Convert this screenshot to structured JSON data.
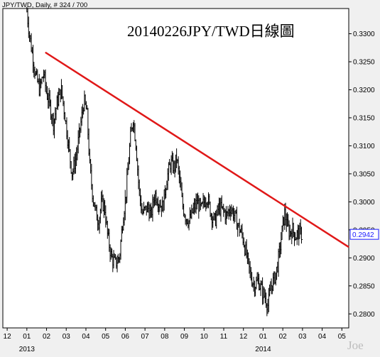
{
  "header": {
    "symbol": "JPY/TWD",
    "info": ", Daily, # 324 / 700"
  },
  "watermark": "Joe",
  "chart_data": {
    "type": "ohlc",
    "title": "20140226JPY/TWD日線圖",
    "y_ticks": [
      "0.3300",
      "0.3250",
      "0.3200",
      "0.3150",
      "0.3100",
      "0.3050",
      "0.3000",
      "0.2950",
      "0.2900",
      "0.2850",
      "0.2800"
    ],
    "ylim": [
      0.2775,
      0.3345
    ],
    "x_ticks": [
      {
        "label": "12",
        "x": 0.0
      },
      {
        "label": "01",
        "x": 1.0
      },
      {
        "label": "02",
        "x": 2.0
      },
      {
        "label": "03",
        "x": 3.0
      },
      {
        "label": "04",
        "x": 4.0
      },
      {
        "label": "05",
        "x": 5.0
      },
      {
        "label": "06",
        "x": 6.0
      },
      {
        "label": "07",
        "x": 7.0
      },
      {
        "label": "08",
        "x": 8.0
      },
      {
        "label": "09",
        "x": 9.0
      },
      {
        "label": "10",
        "x": 10.0
      },
      {
        "label": "11",
        "x": 11.0
      },
      {
        "label": "12",
        "x": 12.0
      },
      {
        "label": "01",
        "x": 13.0
      },
      {
        "label": "02",
        "x": 14.0
      },
      {
        "label": "03",
        "x": 15.0
      },
      {
        "label": "04",
        "x": 16.0
      },
      {
        "label": "05",
        "x": 17.0
      }
    ],
    "year_labels": [
      {
        "label": "2013",
        "x": 1.0
      },
      {
        "label": "2014",
        "x": 13.0
      }
    ],
    "xlim": [
      -0.22,
      17.35
    ],
    "last_value": "0.2942",
    "last_value_color": "#1a1aff",
    "trendline": {
      "color": "#e01818",
      "points": [
        [
          1.97,
          0.3266
        ],
        [
          17.32,
          0.292
        ]
      ]
    },
    "price_color": "#000000",
    "close_path": [
      [
        1.0,
        0.334
      ],
      [
        1.06,
        0.332
      ],
      [
        1.13,
        0.33
      ],
      [
        1.25,
        0.327
      ],
      [
        1.45,
        0.3225
      ],
      [
        1.65,
        0.32
      ],
      [
        1.85,
        0.323
      ],
      [
        2.0,
        0.3195
      ],
      [
        2.15,
        0.3175
      ],
      [
        2.35,
        0.314
      ],
      [
        2.55,
        0.318
      ],
      [
        2.75,
        0.32
      ],
      [
        2.95,
        0.315
      ],
      [
        3.15,
        0.309
      ],
      [
        3.3,
        0.305
      ],
      [
        3.5,
        0.308
      ],
      [
        3.7,
        0.313
      ],
      [
        3.9,
        0.318
      ],
      [
        4.05,
        0.316
      ],
      [
        4.2,
        0.306
      ],
      [
        4.35,
        0.301
      ],
      [
        4.5,
        0.298
      ],
      [
        4.65,
        0.2965
      ],
      [
        4.8,
        0.3
      ],
      [
        4.95,
        0.299
      ],
      [
        5.1,
        0.294
      ],
      [
        5.3,
        0.29
      ],
      [
        5.5,
        0.289
      ],
      [
        5.7,
        0.29
      ],
      [
        5.85,
        0.296
      ],
      [
        6.05,
        0.302
      ],
      [
        6.25,
        0.311
      ],
      [
        6.4,
        0.315
      ],
      [
        6.55,
        0.31
      ],
      [
        6.7,
        0.302
      ],
      [
        6.85,
        0.298
      ],
      [
        7.0,
        0.2985
      ],
      [
        7.15,
        0.299
      ],
      [
        7.3,
        0.2975
      ],
      [
        7.5,
        0.3015
      ],
      [
        7.7,
        0.3
      ],
      [
        7.9,
        0.299
      ],
      [
        8.1,
        0.304
      ],
      [
        8.3,
        0.307
      ],
      [
        8.5,
        0.306
      ],
      [
        8.6,
        0.308
      ],
      [
        8.75,
        0.304
      ],
      [
        8.9,
        0.2995
      ],
      [
        9.05,
        0.2975
      ],
      [
        9.25,
        0.2965
      ],
      [
        9.45,
        0.2985
      ],
      [
        9.65,
        0.3
      ],
      [
        9.85,
        0.2985
      ],
      [
        10.0,
        0.3
      ],
      [
        10.15,
        0.301
      ],
      [
        10.35,
        0.298
      ],
      [
        10.55,
        0.2965
      ],
      [
        10.75,
        0.299
      ],
      [
        10.95,
        0.2985
      ],
      [
        11.15,
        0.2975
      ],
      [
        11.35,
        0.299
      ],
      [
        11.55,
        0.2975
      ],
      [
        11.75,
        0.2955
      ],
      [
        11.95,
        0.294
      ],
      [
        12.15,
        0.2905
      ],
      [
        12.35,
        0.287
      ],
      [
        12.55,
        0.285
      ],
      [
        12.75,
        0.286
      ],
      [
        12.95,
        0.284
      ],
      [
        13.1,
        0.283
      ],
      [
        13.25,
        0.2815
      ],
      [
        13.4,
        0.285
      ],
      [
        13.55,
        0.286
      ],
      [
        13.7,
        0.288
      ],
      [
        13.85,
        0.2915
      ],
      [
        14.0,
        0.296
      ],
      [
        14.1,
        0.298
      ],
      [
        14.2,
        0.296
      ],
      [
        14.35,
        0.2945
      ],
      [
        14.5,
        0.295
      ],
      [
        14.65,
        0.2938
      ],
      [
        14.8,
        0.2945
      ],
      [
        14.95,
        0.2942
      ]
    ]
  }
}
